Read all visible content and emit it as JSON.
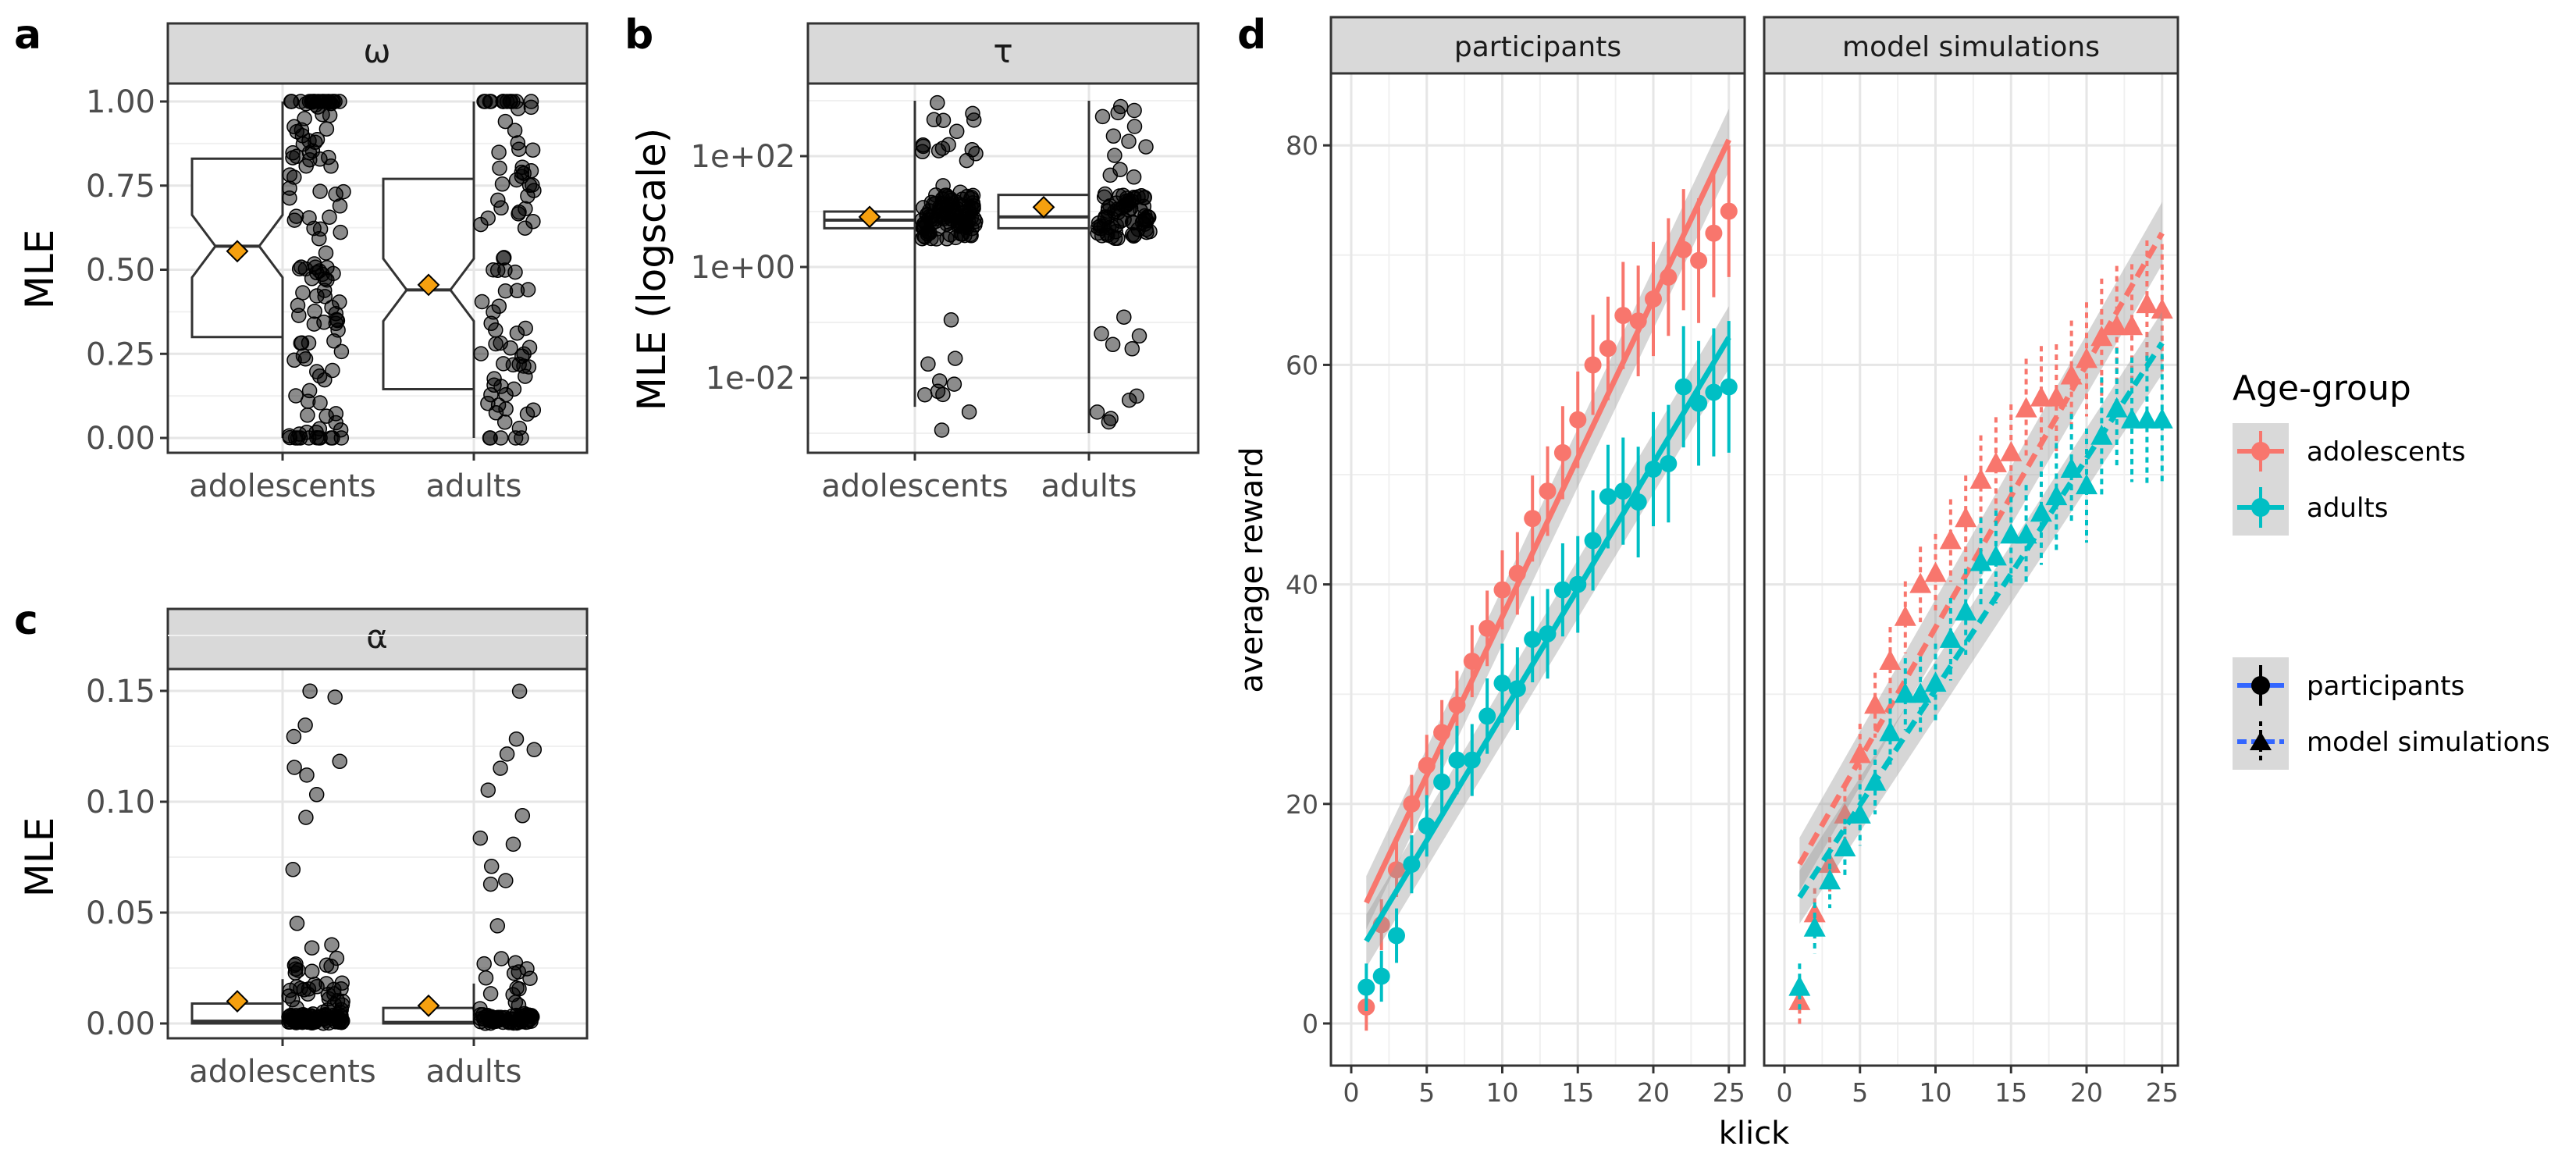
{
  "panels": {
    "a": {
      "letter": "a",
      "strip": "ω",
      "ylabel": "MLE",
      "yticks": [
        "0.00",
        "0.25",
        "0.50",
        "0.75",
        "1.00"
      ],
      "xticks": [
        "adolescents",
        "adults"
      ]
    },
    "b": {
      "letter": "b",
      "strip": "τ",
      "ylabel": "MLE (logscale)",
      "yticks": [
        "1e-02",
        "1e+00",
        "1e+02"
      ],
      "xticks": [
        "adolescents",
        "adults"
      ]
    },
    "c": {
      "letter": "c",
      "strip": "α",
      "ylabel": "MLE",
      "yticks": [
        "0.00",
        "0.05",
        "0.10",
        "0.15"
      ],
      "xticks": [
        "adolescents",
        "adults"
      ]
    },
    "d": {
      "letter": "d",
      "ylabel": "average reward",
      "xlabel": "klick",
      "facets": [
        "participants",
        "model simulations"
      ],
      "yticks": [
        "0",
        "20",
        "40",
        "60",
        "80"
      ],
      "xticks": [
        "0",
        "5",
        "10",
        "15",
        "20",
        "25"
      ]
    }
  },
  "legend": {
    "title": "Age-group",
    "groups": [
      "adolescents",
      "adults"
    ],
    "types": [
      "participants",
      "model simulations"
    ]
  },
  "colors": {
    "adolescents": "#F8766D",
    "adults": "#00BFC4",
    "mean_marker": "#F5A00F",
    "type_key": "#3366FF"
  },
  "chart_data": [
    {
      "panel": "a",
      "type": "box",
      "parameter": "ω",
      "ylabel": "MLE",
      "ylim": [
        0,
        1.0
      ],
      "categories": [
        "adolescents",
        "adults"
      ],
      "boxes": [
        {
          "group": "adolescents",
          "min": 0.0,
          "q1": 0.3,
          "median": 0.57,
          "q3": 0.83,
          "max": 1.0,
          "mean": 0.555
        },
        {
          "group": "adults",
          "min": 0.0,
          "q1": 0.145,
          "median": 0.44,
          "q3": 0.77,
          "max": 1.0,
          "mean": 0.455
        }
      ]
    },
    {
      "panel": "b",
      "type": "box",
      "parameter": "τ",
      "yscale": "log",
      "ylabel": "MLE (logscale)",
      "ylim": [
        0.0005,
        5000
      ],
      "categories": [
        "adolescents",
        "adults"
      ],
      "boxes": [
        {
          "group": "adolescents",
          "min": 0.003,
          "q1": 5,
          "median": 7,
          "q3": 10,
          "max": 1000,
          "mean": 8
        },
        {
          "group": "adults",
          "min": 0.001,
          "q1": 5,
          "median": 8,
          "q3": 20,
          "max": 1000,
          "mean": 12
        }
      ]
    },
    {
      "panel": "c",
      "type": "box",
      "parameter": "α",
      "ylabel": "MLE",
      "ylim": [
        0,
        0.15
      ],
      "categories": [
        "adolescents",
        "adults"
      ],
      "boxes": [
        {
          "group": "adolescents",
          "min": 0.0,
          "q1": 0.0,
          "median": 0.001,
          "q3": 0.009,
          "max": 0.02,
          "mean": 0.01
        },
        {
          "group": "adults",
          "min": 0.0,
          "q1": 0.0,
          "median": 0.0005,
          "q3": 0.007,
          "max": 0.018,
          "mean": 0.008
        }
      ]
    },
    {
      "panel": "d",
      "type": "line",
      "facets": [
        "participants",
        "model simulations"
      ],
      "xlabel": "klick",
      "ylabel": "average reward",
      "xlim": [
        0,
        26
      ],
      "ylim": [
        -4,
        88
      ],
      "x": [
        1,
        2,
        3,
        4,
        5,
        6,
        7,
        8,
        9,
        10,
        11,
        12,
        13,
        14,
        15,
        16,
        17,
        18,
        19,
        20,
        21,
        22,
        23,
        24,
        25
      ],
      "series": [
        {
          "facet": "participants",
          "name": "adolescents",
          "values": [
            1.5,
            9,
            14,
            20,
            23.5,
            26.5,
            29,
            33,
            36,
            39.5,
            41,
            46,
            48.5,
            52,
            55,
            60,
            61.5,
            64.5,
            64,
            66,
            68,
            70.5,
            69.5,
            72,
            74
          ],
          "fit": [
            11,
            80.5
          ]
        },
        {
          "facet": "participants",
          "name": "adults",
          "values": [
            3.3,
            4.3,
            8,
            14.5,
            18,
            22,
            24,
            24,
            28,
            31,
            30.5,
            35,
            35.5,
            39.5,
            40,
            44,
            48,
            48.5,
            47.5,
            50.5,
            51,
            58,
            56.5,
            57.5,
            58
          ],
          "fit": [
            7.5,
            62.5
          ]
        },
        {
          "facet": "model simulations",
          "name": "adolescents",
          "values": [
            2,
            10,
            14.5,
            19,
            24.5,
            29,
            33,
            37,
            40,
            41,
            44,
            46,
            49.5,
            51,
            52,
            56,
            57,
            57,
            59,
            60.5,
            62.5,
            63.5,
            63.5,
            65.5,
            65
          ],
          "fit": [
            14.5,
            72
          ]
        },
        {
          "facet": "model simulations",
          "name": "adults",
          "values": [
            3.3,
            8.7,
            13,
            16,
            19,
            22,
            26.5,
            30,
            30,
            31,
            35,
            37.5,
            42,
            42.5,
            44.5,
            44.5,
            46.5,
            48,
            50.5,
            49,
            53.5,
            56,
            55,
            55,
            55
          ],
          "fit": [
            11.5,
            62
          ]
        }
      ]
    }
  ]
}
